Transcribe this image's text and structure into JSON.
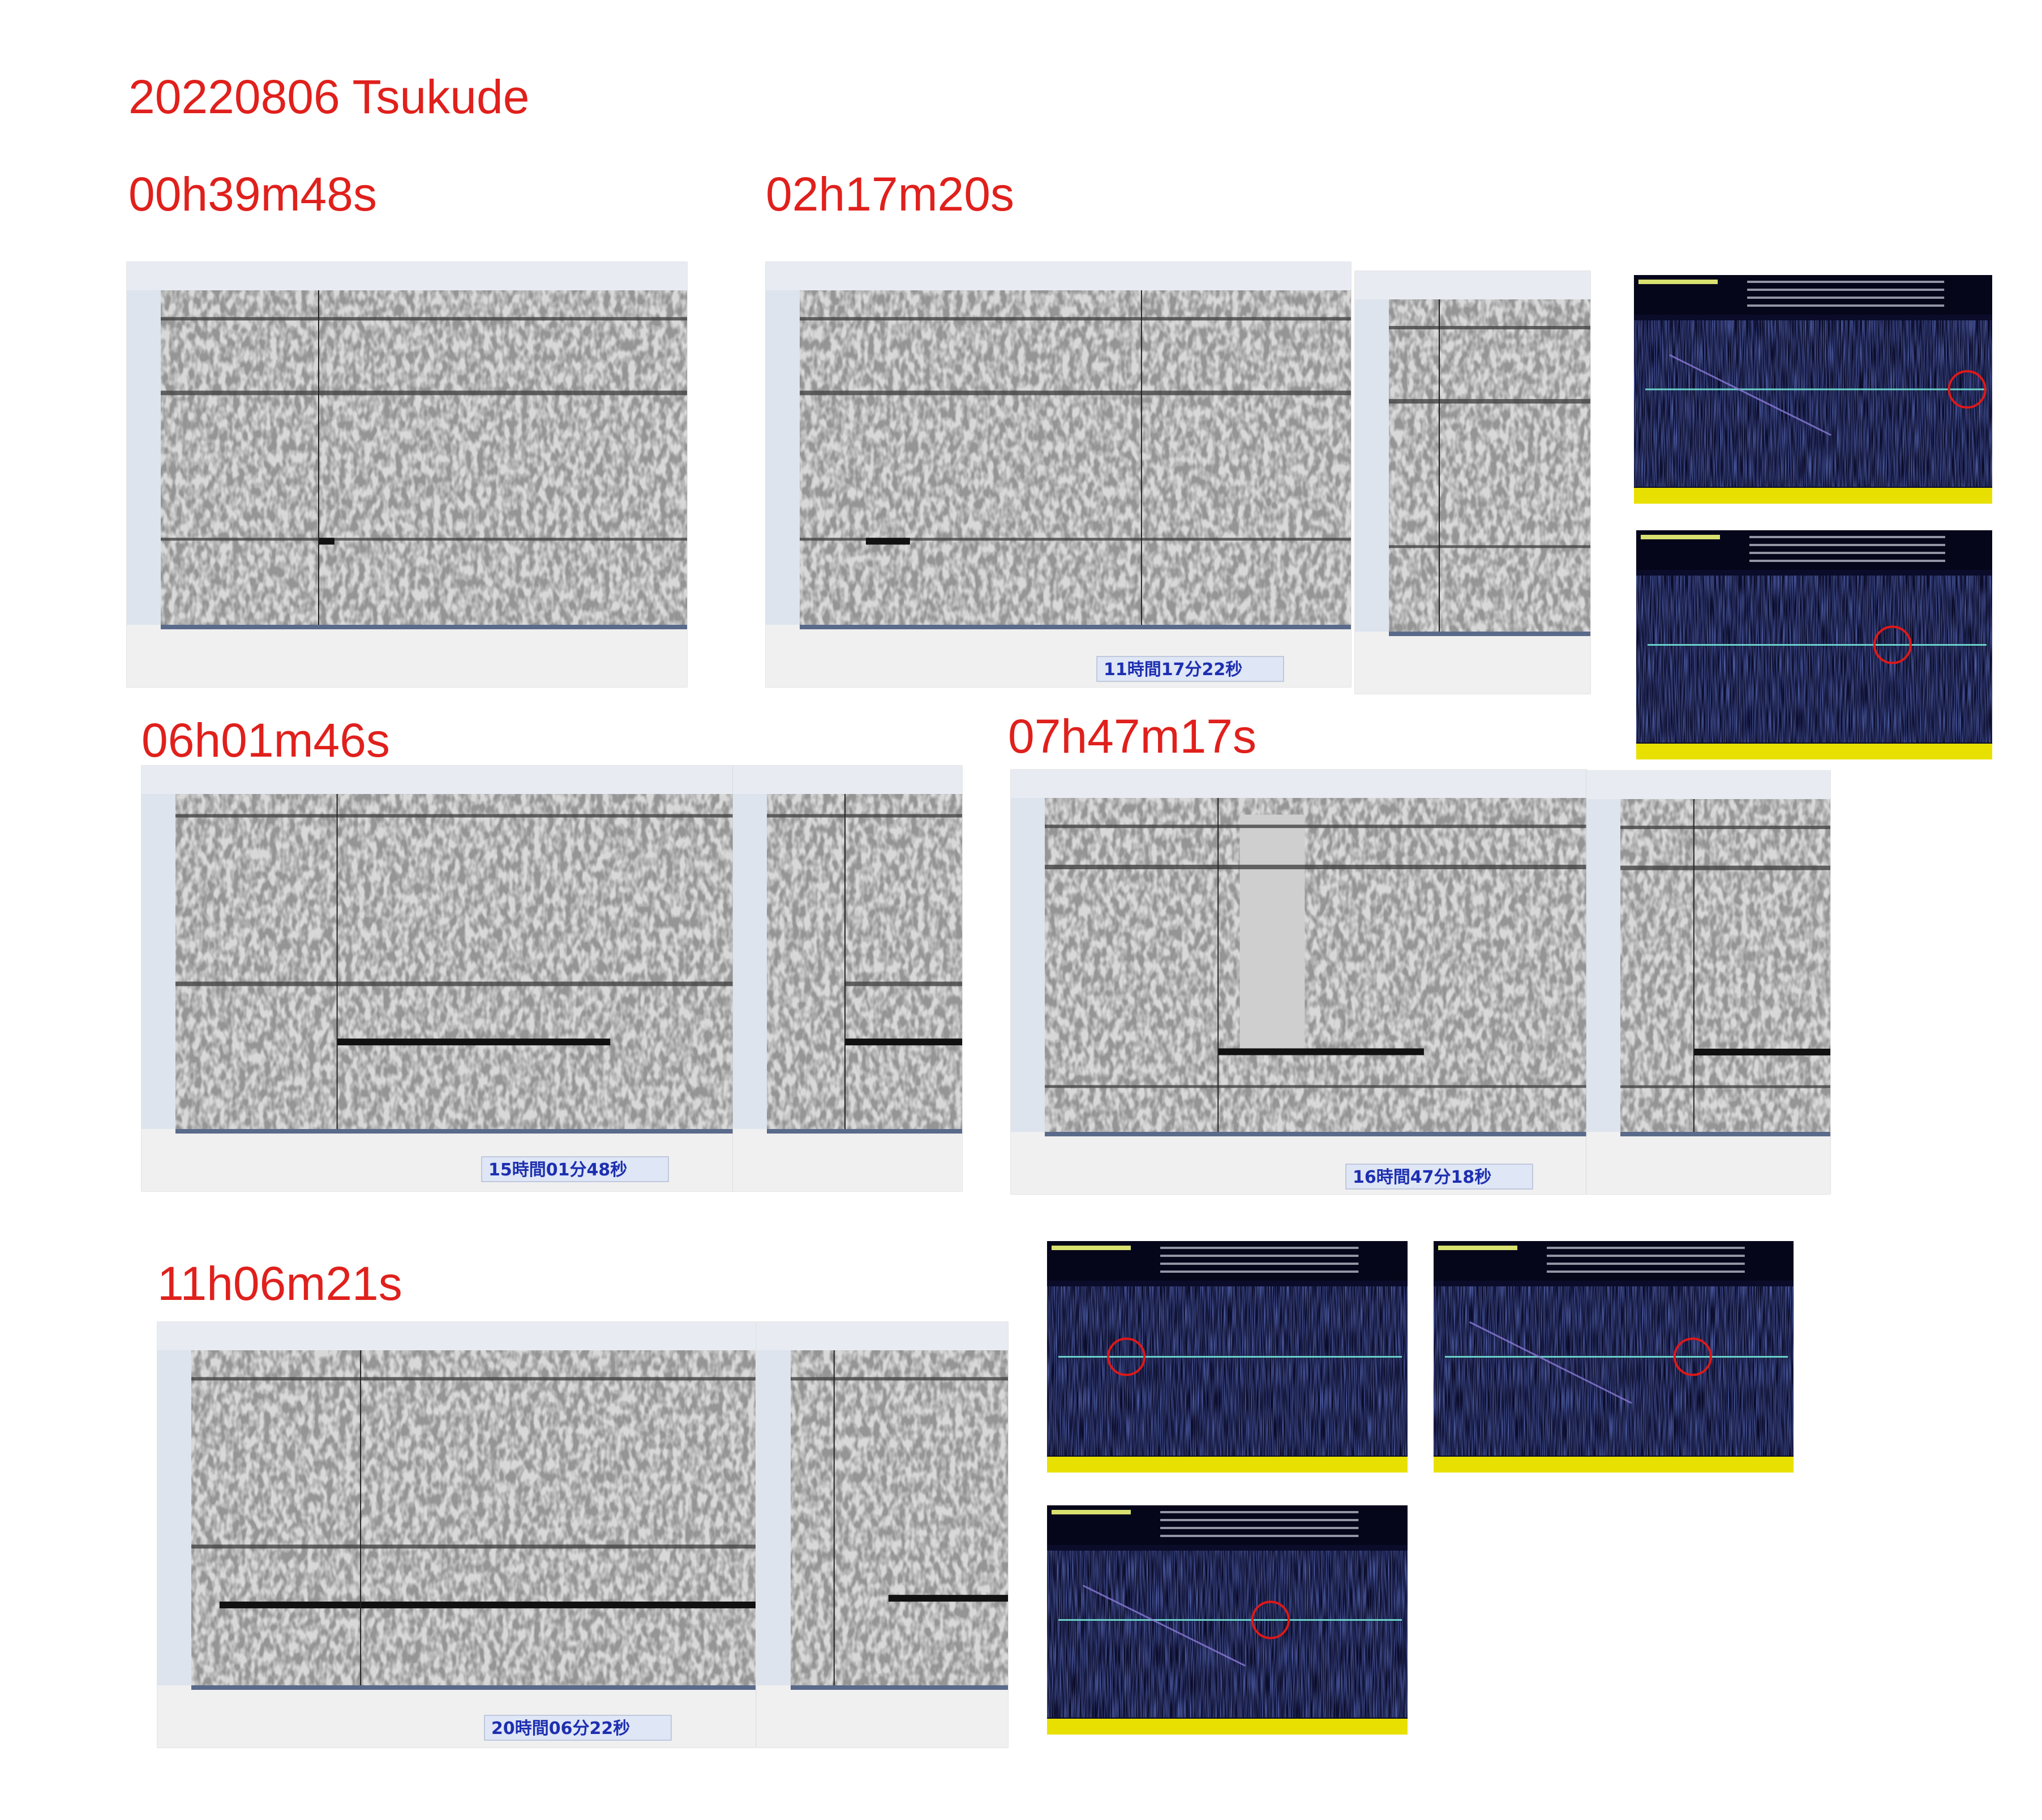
{
  "header": {
    "title": "20220806 Tsukude"
  },
  "sections": [
    {
      "heading": "00h39m48s"
    },
    {
      "heading": "02h17m20s",
      "time_display": "11時間17分22秒"
    },
    {
      "heading": "06h01m46s",
      "time_display": "15時間01分48秒"
    },
    {
      "heading": "07h47m17s",
      "time_display": "16時間47分18秒"
    },
    {
      "heading": "11h06m21s",
      "time_display": "20時間06分22秒"
    }
  ]
}
